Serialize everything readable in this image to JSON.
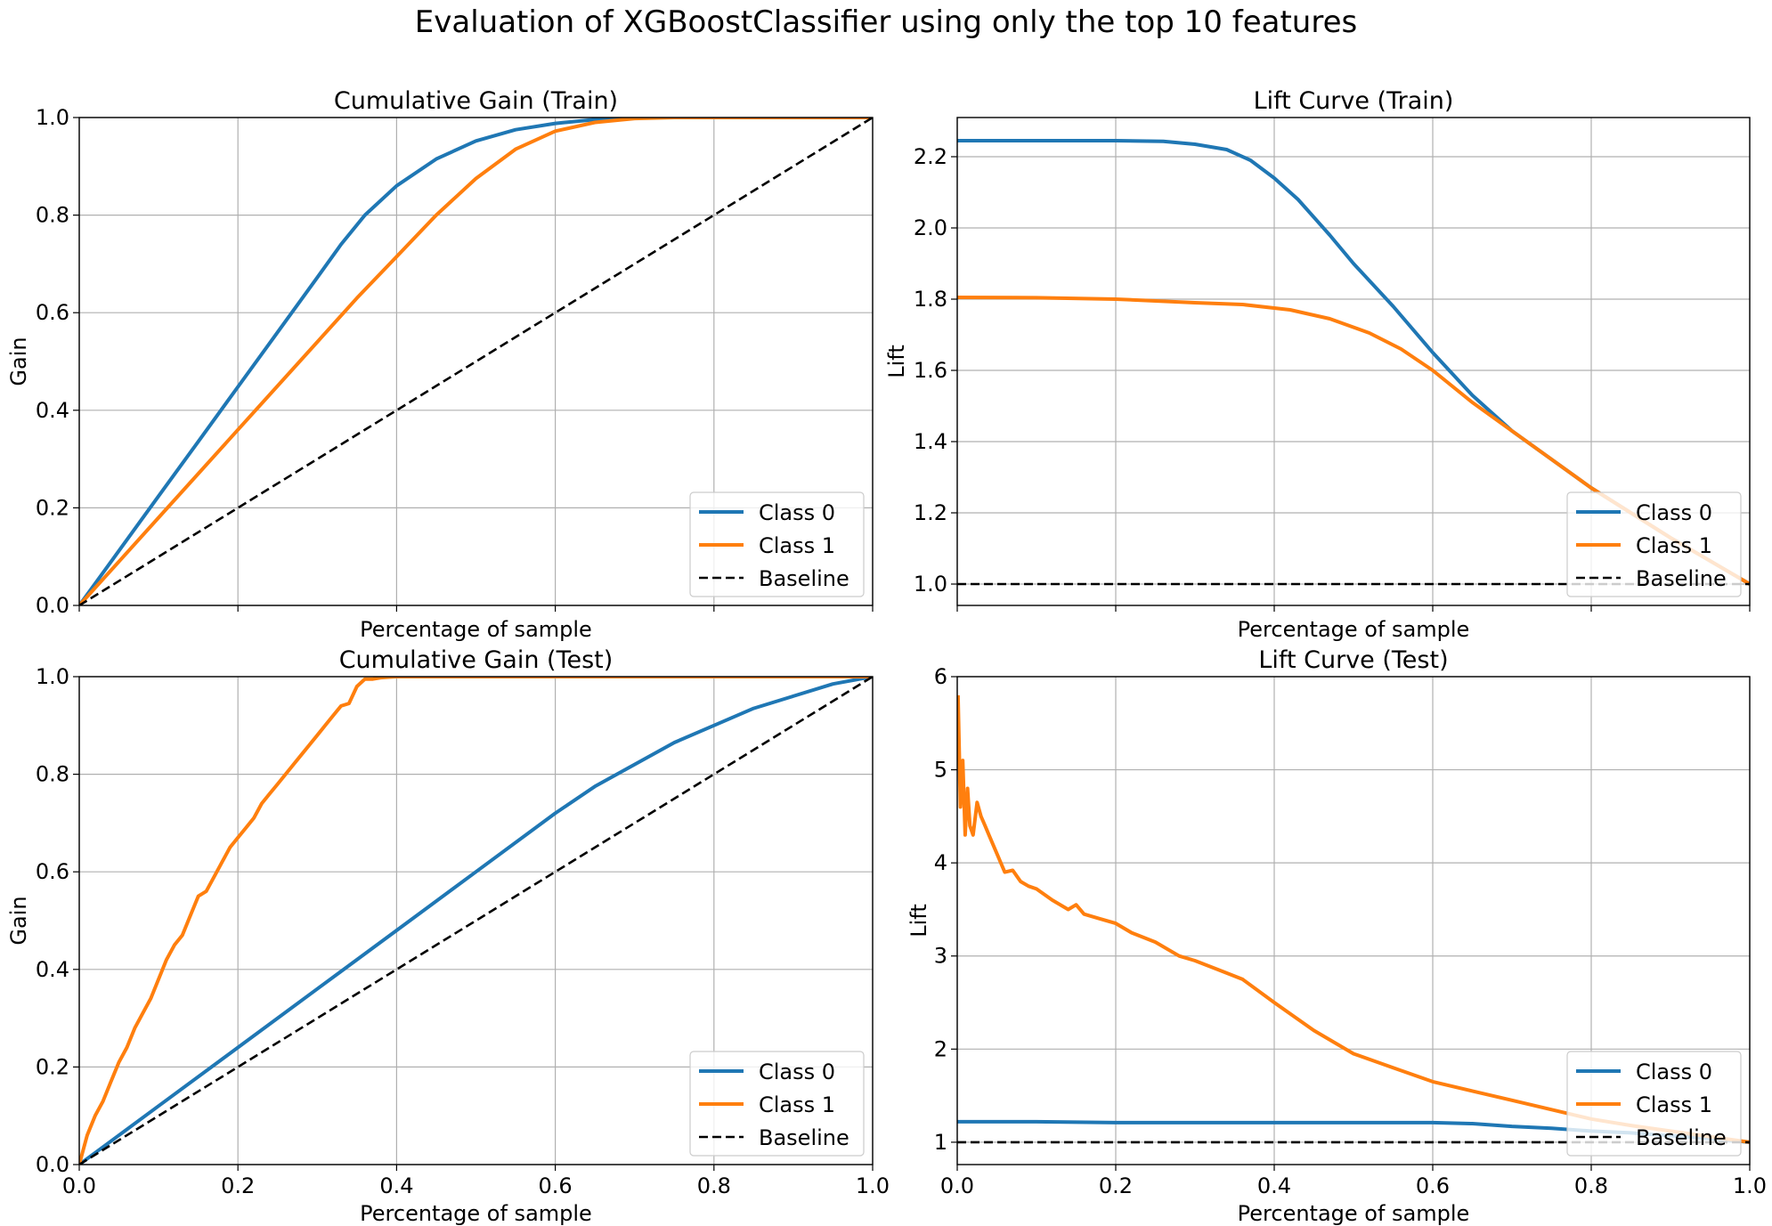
{
  "figure": {
    "title": "Evaluation of XGBoostClassifier using only the top 10 features"
  },
  "colors": {
    "class0": "#1f77b4",
    "class1": "#ff7f0e",
    "baseline": "#000000",
    "grid": "#b0b0b0"
  },
  "chart_data": [
    {
      "type": "line",
      "title": "Cumulative Gain (Train)",
      "xlabel": "Percentage of sample",
      "ylabel": "Gain",
      "xlim": [
        0,
        1
      ],
      "ylim": [
        0,
        1
      ],
      "xticks": [
        0.0,
        0.2,
        0.4,
        0.6,
        0.8,
        1.0
      ],
      "xtick_labels_shown": false,
      "yticks": [
        "0.0",
        "0.2",
        "0.4",
        "0.6",
        "0.8",
        "1.0"
      ],
      "grid": true,
      "legend_position": "lower-right",
      "series": [
        {
          "name": "Class 0",
          "x": [
            0,
            0.05,
            0.1,
            0.15,
            0.2,
            0.25,
            0.3,
            0.33,
            0.36,
            0.4,
            0.45,
            0.5,
            0.55,
            0.6,
            0.65,
            0.7,
            1.0
          ],
          "y": [
            0,
            0.112,
            0.224,
            0.336,
            0.448,
            0.56,
            0.672,
            0.74,
            0.8,
            0.86,
            0.915,
            0.952,
            0.975,
            0.988,
            0.996,
            1.0,
            1.0
          ]
        },
        {
          "name": "Class 1",
          "x": [
            0,
            0.05,
            0.1,
            0.15,
            0.2,
            0.25,
            0.3,
            0.35,
            0.4,
            0.45,
            0.5,
            0.55,
            0.6,
            0.65,
            0.7,
            0.75,
            1.0
          ],
          "y": [
            0,
            0.09,
            0.18,
            0.27,
            0.36,
            0.45,
            0.54,
            0.63,
            0.715,
            0.8,
            0.875,
            0.935,
            0.972,
            0.99,
            0.998,
            1.0,
            1.0
          ]
        },
        {
          "name": "Baseline",
          "style": "dashed",
          "x": [
            0,
            1
          ],
          "y": [
            0,
            1
          ]
        }
      ]
    },
    {
      "type": "line",
      "title": "Lift Curve (Train)",
      "xlabel": "Percentage of sample",
      "ylabel": "Lift",
      "xlim": [
        0,
        1
      ],
      "ylim": [
        0.94,
        2.31
      ],
      "xticks": [
        0.0,
        0.2,
        0.4,
        0.6,
        0.8,
        1.0
      ],
      "xtick_labels_shown": false,
      "yticks": [
        "1.0",
        "1.2",
        "1.4",
        "1.6",
        "1.8",
        "2.0",
        "2.2"
      ],
      "grid": true,
      "legend_position": "lower-right",
      "series": [
        {
          "name": "Class 0",
          "x": [
            0,
            0.1,
            0.2,
            0.26,
            0.3,
            0.34,
            0.37,
            0.4,
            0.43,
            0.47,
            0.5,
            0.55,
            0.6,
            0.65,
            0.7,
            0.75,
            0.8,
            0.85,
            0.9,
            0.95,
            1.0
          ],
          "y": [
            2.245,
            2.245,
            2.245,
            2.243,
            2.235,
            2.22,
            2.19,
            2.14,
            2.08,
            1.98,
            1.9,
            1.78,
            1.65,
            1.53,
            1.43,
            1.35,
            1.27,
            1.2,
            1.13,
            1.065,
            1.0
          ]
        },
        {
          "name": "Class 1",
          "x": [
            0,
            0.1,
            0.2,
            0.3,
            0.36,
            0.42,
            0.47,
            0.52,
            0.56,
            0.6,
            0.65,
            0.7,
            0.75,
            0.8,
            0.85,
            0.9,
            0.95,
            1.0
          ],
          "y": [
            1.805,
            1.804,
            1.8,
            1.79,
            1.785,
            1.77,
            1.745,
            1.705,
            1.66,
            1.6,
            1.51,
            1.43,
            1.35,
            1.27,
            1.2,
            1.13,
            1.065,
            1.0
          ]
        },
        {
          "name": "Baseline",
          "style": "dashed",
          "x": [
            0,
            1
          ],
          "y": [
            1,
            1
          ]
        }
      ]
    },
    {
      "type": "line",
      "title": "Cumulative Gain (Test)",
      "xlabel": "Percentage of sample",
      "ylabel": "Gain",
      "xlim": [
        0,
        1
      ],
      "ylim": [
        0,
        1
      ],
      "xticks": [
        "0.0",
        "0.2",
        "0.4",
        "0.6",
        "0.8",
        "1.0"
      ],
      "yticks": [
        "0.0",
        "0.2",
        "0.4",
        "0.6",
        "0.8",
        "1.0"
      ],
      "grid": true,
      "legend_position": "lower-right",
      "series": [
        {
          "name": "Class 0",
          "x": [
            0,
            0.1,
            0.2,
            0.3,
            0.4,
            0.5,
            0.6,
            0.65,
            0.7,
            0.75,
            0.8,
            0.85,
            0.9,
            0.95,
            1.0
          ],
          "y": [
            0,
            0.12,
            0.24,
            0.36,
            0.48,
            0.6,
            0.72,
            0.775,
            0.82,
            0.865,
            0.9,
            0.935,
            0.96,
            0.985,
            1.0
          ]
        },
        {
          "name": "Class 1",
          "x": [
            0,
            0.01,
            0.02,
            0.03,
            0.04,
            0.05,
            0.06,
            0.07,
            0.08,
            0.09,
            0.1,
            0.11,
            0.12,
            0.13,
            0.14,
            0.15,
            0.16,
            0.17,
            0.18,
            0.19,
            0.2,
            0.21,
            0.22,
            0.23,
            0.24,
            0.25,
            0.26,
            0.27,
            0.28,
            0.29,
            0.3,
            0.31,
            0.32,
            0.33,
            0.34,
            0.35,
            0.36,
            0.37,
            0.38,
            0.39,
            0.4,
            0.5,
            0.6,
            0.7,
            0.8,
            0.9,
            1.0
          ],
          "y": [
            0,
            0.06,
            0.1,
            0.13,
            0.17,
            0.21,
            0.24,
            0.28,
            0.31,
            0.34,
            0.38,
            0.42,
            0.45,
            0.47,
            0.51,
            0.55,
            0.56,
            0.59,
            0.62,
            0.65,
            0.67,
            0.69,
            0.71,
            0.74,
            0.76,
            0.78,
            0.8,
            0.82,
            0.84,
            0.86,
            0.88,
            0.9,
            0.92,
            0.94,
            0.945,
            0.98,
            0.995,
            0.995,
            0.998,
            0.999,
            1.0,
            1.0,
            1.0,
            1.0,
            1.0,
            1.0,
            1.0
          ]
        },
        {
          "name": "Baseline",
          "style": "dashed",
          "x": [
            0,
            1
          ],
          "y": [
            0,
            1
          ]
        }
      ]
    },
    {
      "type": "line",
      "title": "Lift Curve (Test)",
      "xlabel": "Percentage of sample",
      "ylabel": "Lift",
      "xlim": [
        0,
        1
      ],
      "ylim": [
        0.76,
        6.0
      ],
      "xticks": [
        "0.0",
        "0.2",
        "0.4",
        "0.6",
        "0.8",
        "1.0"
      ],
      "yticks": [
        "1",
        "2",
        "3",
        "4",
        "5",
        "6"
      ],
      "grid": true,
      "legend_position": "lower-right",
      "series": [
        {
          "name": "Class 0",
          "x": [
            0,
            0.1,
            0.2,
            0.3,
            0.4,
            0.5,
            0.6,
            0.65,
            0.7,
            0.75,
            0.8,
            0.85,
            0.9,
            0.95,
            1.0
          ],
          "y": [
            1.22,
            1.22,
            1.21,
            1.21,
            1.21,
            1.21,
            1.21,
            1.2,
            1.17,
            1.15,
            1.12,
            1.1,
            1.07,
            1.04,
            1.0
          ]
        },
        {
          "name": "Class 1",
          "x": [
            0.001,
            0.004,
            0.007,
            0.01,
            0.013,
            0.016,
            0.02,
            0.025,
            0.03,
            0.035,
            0.04,
            0.05,
            0.06,
            0.07,
            0.08,
            0.09,
            0.1,
            0.12,
            0.14,
            0.15,
            0.16,
            0.18,
            0.2,
            0.22,
            0.25,
            0.28,
            0.3,
            0.33,
            0.36,
            0.4,
            0.45,
            0.5,
            0.55,
            0.6,
            0.65,
            0.7,
            0.75,
            0.8,
            0.85,
            0.9,
            0.95,
            1.0
          ],
          "y": [
            5.8,
            4.6,
            5.1,
            4.3,
            4.8,
            4.4,
            4.3,
            4.65,
            4.5,
            4.4,
            4.3,
            4.1,
            3.9,
            3.92,
            3.8,
            3.75,
            3.72,
            3.6,
            3.5,
            3.55,
            3.45,
            3.4,
            3.35,
            3.25,
            3.15,
            3.0,
            2.95,
            2.85,
            2.75,
            2.5,
            2.2,
            1.95,
            1.8,
            1.65,
            1.55,
            1.45,
            1.35,
            1.25,
            1.18,
            1.12,
            1.06,
            1.0
          ]
        },
        {
          "name": "Baseline",
          "style": "dashed",
          "x": [
            0,
            1
          ],
          "y": [
            1,
            1
          ]
        }
      ]
    }
  ]
}
